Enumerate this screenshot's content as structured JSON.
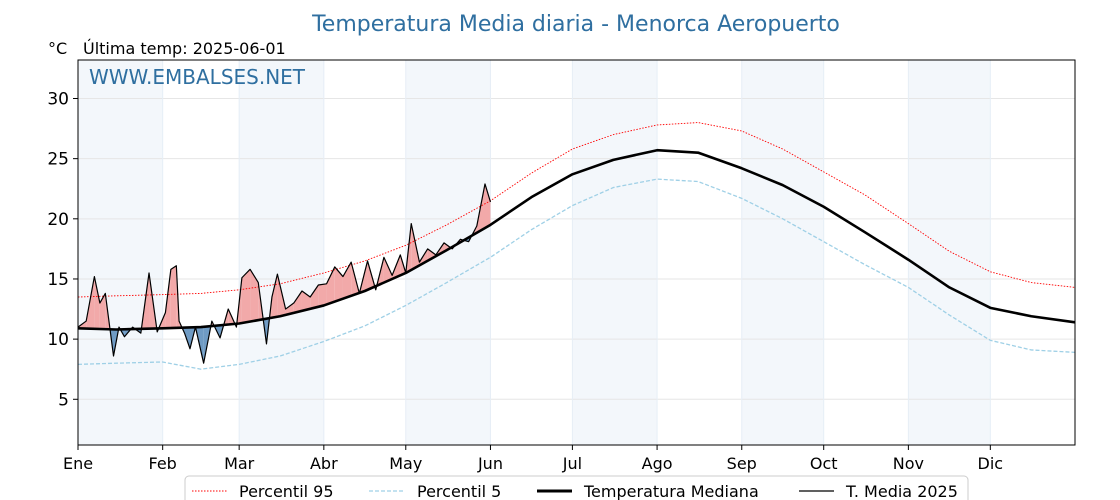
{
  "header": {
    "title": "Temperatura Media diaria - Menorca Aeropuerto",
    "unit": "°C",
    "last_temp": "Última temp: 2025-06-01",
    "watermark": "WWW.EMBALSES.NET"
  },
  "colors": {
    "title": "#2f6fa0",
    "p95": "#ff0000",
    "p5": "#9fd0e6",
    "median": "#000000",
    "current": "#000000",
    "above_fill": "#f2a9a9",
    "below_fill": "#6f9bc4",
    "month_band": "#f3f7fb"
  },
  "chart_data": {
    "type": "line",
    "title": "Temperatura Media diaria - Menorca Aeropuerto",
    "ylabel": "°C",
    "ylim": [
      1.2,
      33.2
    ],
    "yticks": [
      5,
      10,
      15,
      20,
      25,
      30
    ],
    "xlim": [
      1,
      366
    ],
    "grid": true,
    "legend_position": "bottom",
    "month_labels": [
      "Ene",
      "Feb",
      "Mar",
      "Abr",
      "May",
      "Jun",
      "Jul",
      "Ago",
      "Sep",
      "Oct",
      "Nov",
      "Dic"
    ],
    "month_start_day": [
      1,
      32,
      60,
      91,
      121,
      152,
      182,
      213,
      244,
      274,
      305,
      335
    ],
    "legend": [
      "Percentil 95",
      "Percentil 5",
      "Temperatura Mediana",
      "T. Media 2025"
    ],
    "series": [
      {
        "name": "Percentil 95",
        "style": "dotted",
        "day": [
          1,
          15,
          32,
          46,
          60,
          75,
          91,
          106,
          121,
          136,
          152,
          167,
          182,
          197,
          213,
          228,
          244,
          259,
          274,
          289,
          305,
          320,
          335,
          350,
          366
        ],
        "values": [
          13.5,
          13.6,
          13.7,
          13.8,
          14.1,
          14.6,
          15.5,
          16.5,
          17.8,
          19.5,
          21.5,
          23.8,
          25.8,
          27.0,
          27.8,
          28.0,
          27.3,
          25.8,
          23.9,
          22.0,
          19.6,
          17.3,
          15.6,
          14.7,
          14.3
        ]
      },
      {
        "name": "Percentil 5",
        "style": "dashed",
        "day": [
          1,
          15,
          32,
          46,
          60,
          75,
          91,
          106,
          121,
          136,
          152,
          167,
          182,
          197,
          213,
          228,
          244,
          259,
          274,
          289,
          305,
          320,
          335,
          350,
          366
        ],
        "values": [
          7.9,
          8.0,
          8.1,
          7.5,
          7.9,
          8.6,
          9.8,
          11.1,
          12.8,
          14.7,
          16.8,
          19.1,
          21.1,
          22.6,
          23.3,
          23.1,
          21.7,
          20.0,
          18.1,
          16.2,
          14.3,
          12.0,
          9.9,
          9.1,
          8.9
        ]
      },
      {
        "name": "Temperatura Mediana",
        "style": "solid-thick",
        "day": [
          1,
          15,
          32,
          46,
          60,
          75,
          91,
          106,
          121,
          136,
          152,
          167,
          182,
          197,
          213,
          228,
          244,
          259,
          274,
          289,
          305,
          320,
          335,
          350,
          366
        ],
        "values": [
          10.9,
          10.8,
          10.9,
          11.0,
          11.3,
          11.9,
          12.8,
          14.0,
          15.5,
          17.4,
          19.5,
          21.8,
          23.7,
          24.9,
          25.7,
          25.5,
          24.2,
          22.8,
          21.0,
          18.9,
          16.6,
          14.3,
          12.6,
          11.9,
          11.4
        ]
      },
      {
        "name": "T. Media 2025",
        "style": "solid-thin",
        "day": [
          1,
          4,
          7,
          9,
          11,
          14,
          16,
          18,
          21,
          24,
          27,
          30,
          33,
          35,
          37,
          38,
          40,
          42,
          44,
          47,
          50,
          53,
          56,
          59,
          61,
          64,
          67,
          70,
          72,
          74,
          77,
          80,
          83,
          86,
          89,
          92,
          95,
          98,
          101,
          104,
          107,
          110,
          113,
          116,
          119,
          121,
          123,
          126,
          129,
          132,
          135,
          138,
          141,
          144,
          147,
          150,
          152
        ],
        "values": [
          11.0,
          11.5,
          15.2,
          13.0,
          13.8,
          8.6,
          11.0,
          10.2,
          11.0,
          10.5,
          15.5,
          10.6,
          12.2,
          15.8,
          16.1,
          11.5,
          10.5,
          9.2,
          11.0,
          8.0,
          11.5,
          10.1,
          12.5,
          11.0,
          15.1,
          15.8,
          14.7,
          9.6,
          13.5,
          15.4,
          12.5,
          13.0,
          14.0,
          13.5,
          14.5,
          14.6,
          16.0,
          15.2,
          16.4,
          13.8,
          16.5,
          14.1,
          16.8,
          15.3,
          17.0,
          15.5,
          19.6,
          16.4,
          17.5,
          17.0,
          18.0,
          17.5,
          18.3,
          18.1,
          19.4,
          22.9,
          21.4
        ]
      }
    ]
  }
}
